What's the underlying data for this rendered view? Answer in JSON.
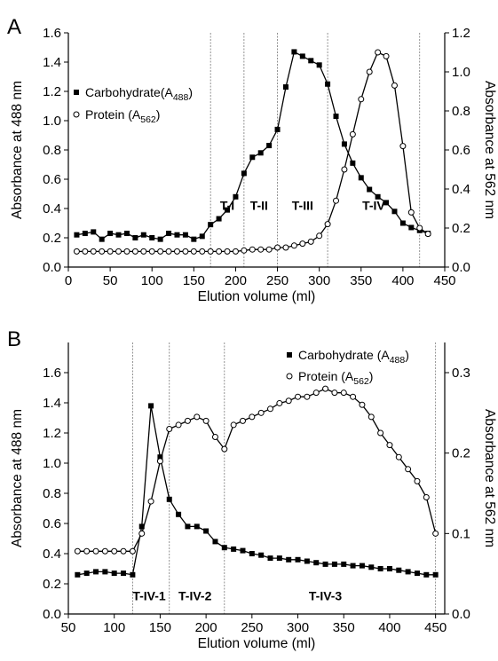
{
  "chart_data": [
    {
      "panel": "A",
      "type": "line",
      "xlabel": "Elution volume (ml)",
      "ylabel": "Absorbance at 488 nm",
      "ylabel_right": "Absorbance at 562 nm",
      "xlim": [
        0,
        450
      ],
      "ylim": [
        0,
        1.6
      ],
      "ylim_right": [
        0,
        1.2
      ],
      "xticks": [
        "0",
        "50",
        "100",
        "150",
        "200",
        "250",
        "300",
        "350",
        "400",
        "450"
      ],
      "yticks": [
        "0.0",
        "0.2",
        "0.4",
        "0.6",
        "0.8",
        "1.0",
        "1.2",
        "1.4",
        "1.6"
      ],
      "yticks_right": [
        "0.0",
        "0.2",
        "0.4",
        "0.6",
        "0.8",
        "1.0",
        "1.2"
      ],
      "legend": [
        {
          "label": "Carbohydrate(A",
          "sub": "488",
          "tail": ")"
        },
        {
          "label": "Protein (A",
          "sub": "562",
          "tail": ")"
        }
      ],
      "legend_position": "middle-left",
      "regions": [
        {
          "label": "T-I",
          "x": 190,
          "y": 0.42
        },
        {
          "label": "T-II",
          "x": 228,
          "y": 0.42
        },
        {
          "label": "T-III",
          "x": 280,
          "y": 0.42
        },
        {
          "label": "T-IV",
          "x": 365,
          "y": 0.42
        }
      ],
      "dividers": [
        170,
        210,
        250,
        310,
        420
      ],
      "series": [
        {
          "axis": "left",
          "marker": "square",
          "x": [
            10,
            20,
            30,
            40,
            50,
            60,
            70,
            80,
            90,
            100,
            110,
            120,
            130,
            140,
            150,
            160,
            170,
            180,
            190,
            200,
            210,
            220,
            230,
            240,
            250,
            260,
            270,
            280,
            290,
            300,
            310,
            320,
            330,
            340,
            350,
            360,
            370,
            380,
            390,
            400,
            410,
            420,
            430
          ],
          "values": [
            0.22,
            0.23,
            0.24,
            0.19,
            0.23,
            0.22,
            0.23,
            0.2,
            0.22,
            0.2,
            0.19,
            0.23,
            0.22,
            0.22,
            0.19,
            0.21,
            0.29,
            0.33,
            0.39,
            0.48,
            0.64,
            0.75,
            0.78,
            0.83,
            0.94,
            1.23,
            1.47,
            1.44,
            1.41,
            1.38,
            1.25,
            1.03,
            0.84,
            0.71,
            0.61,
            0.53,
            0.48,
            0.44,
            0.38,
            0.3,
            0.27,
            0.25,
            0.23
          ]
        },
        {
          "axis": "right",
          "marker": "circle",
          "x": [
            10,
            20,
            30,
            40,
            50,
            60,
            70,
            80,
            90,
            100,
            110,
            120,
            130,
            140,
            150,
            160,
            170,
            180,
            190,
            200,
            210,
            220,
            230,
            240,
            250,
            260,
            270,
            280,
            290,
            300,
            310,
            320,
            330,
            340,
            350,
            360,
            370,
            380,
            390,
            400,
            410,
            420,
            430
          ],
          "values": [
            0.08,
            0.08,
            0.08,
            0.08,
            0.08,
            0.08,
            0.08,
            0.08,
            0.08,
            0.08,
            0.08,
            0.08,
            0.08,
            0.08,
            0.08,
            0.08,
            0.08,
            0.08,
            0.08,
            0.08,
            0.085,
            0.09,
            0.09,
            0.09,
            0.1,
            0.1,
            0.11,
            0.12,
            0.13,
            0.16,
            0.22,
            0.34,
            0.5,
            0.68,
            0.86,
            1.0,
            1.1,
            1.08,
            0.93,
            0.62,
            0.28,
            0.2,
            0.17
          ]
        }
      ]
    },
    {
      "panel": "B",
      "type": "line",
      "xlabel": "Elution volume (ml)",
      "ylabel": "Absorbance at 488 nm",
      "ylabel_right": "Absorbance at 562 nm",
      "xlim": [
        50,
        460
      ],
      "ylim": [
        0,
        1.8
      ],
      "ylim_right": [
        0,
        0.3375
      ],
      "xticks": [
        "50",
        "100",
        "150",
        "200",
        "250",
        "300",
        "350",
        "400",
        "450"
      ],
      "yticks": [
        "0.0",
        "0.2",
        "0.4",
        "0.6",
        "0.8",
        "1.0",
        "1.2",
        "1.4",
        "1.6"
      ],
      "yticks_right": [
        "0.0",
        "0.1",
        "0.2",
        "0.3"
      ],
      "legend": [
        {
          "label": "Carbohydrate (A",
          "sub": "488",
          "tail": ")"
        },
        {
          "label": "Protein (A",
          "sub": "562",
          "tail": ")"
        }
      ],
      "legend_position": "top-right",
      "regions": [
        {
          "label": "T-IV-1",
          "x": 138,
          "y": 0.12
        },
        {
          "label": "T-IV-2",
          "x": 188,
          "y": 0.12
        },
        {
          "label": "T-IV-3",
          "x": 330,
          "y": 0.12
        }
      ],
      "dividers": [
        120,
        160,
        220,
        450
      ],
      "series": [
        {
          "axis": "left",
          "marker": "square",
          "x": [
            60,
            70,
            80,
            90,
            100,
            110,
            120,
            130,
            140,
            150,
            160,
            170,
            180,
            190,
            200,
            210,
            220,
            230,
            240,
            250,
            260,
            270,
            280,
            290,
            300,
            310,
            320,
            330,
            340,
            350,
            360,
            370,
            380,
            390,
            400,
            410,
            420,
            430,
            440,
            450
          ],
          "values": [
            0.26,
            0.27,
            0.28,
            0.28,
            0.27,
            0.27,
            0.26,
            0.58,
            1.38,
            1.04,
            0.76,
            0.66,
            0.58,
            0.58,
            0.55,
            0.48,
            0.44,
            0.43,
            0.42,
            0.4,
            0.39,
            0.37,
            0.37,
            0.36,
            0.36,
            0.35,
            0.34,
            0.33,
            0.33,
            0.33,
            0.32,
            0.32,
            0.31,
            0.3,
            0.3,
            0.29,
            0.28,
            0.27,
            0.26,
            0.26
          ]
        },
        {
          "axis": "right",
          "marker": "circle",
          "x": [
            60,
            70,
            80,
            90,
            100,
            110,
            120,
            130,
            140,
            150,
            160,
            170,
            180,
            190,
            200,
            210,
            220,
            230,
            240,
            250,
            260,
            270,
            280,
            290,
            300,
            310,
            320,
            330,
            340,
            350,
            360,
            370,
            380,
            390,
            400,
            410,
            420,
            430,
            440,
            450
          ],
          "values": [
            0.078,
            0.078,
            0.078,
            0.078,
            0.078,
            0.078,
            0.078,
            0.1,
            0.14,
            0.19,
            0.23,
            0.235,
            0.24,
            0.245,
            0.24,
            0.22,
            0.205,
            0.235,
            0.24,
            0.245,
            0.25,
            0.255,
            0.262,
            0.265,
            0.27,
            0.27,
            0.275,
            0.28,
            0.275,
            0.275,
            0.27,
            0.26,
            0.245,
            0.225,
            0.21,
            0.195,
            0.18,
            0.165,
            0.145,
            0.1
          ]
        }
      ]
    }
  ]
}
